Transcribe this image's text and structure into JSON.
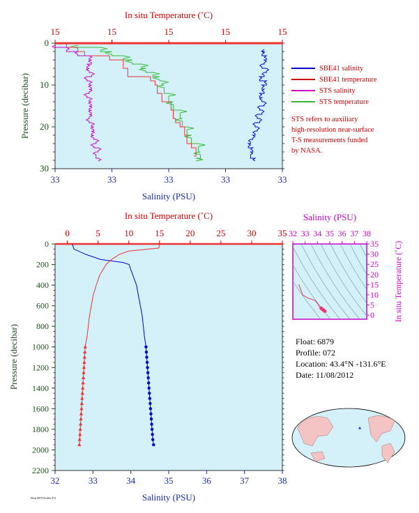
{
  "colors": {
    "bg": "#d4f1fa",
    "salinity_axis": "#1a2aa8",
    "temp_axis": "#cc0000",
    "pressure_axis": "#1f4d1f",
    "sbe_salinity": "#0000cc",
    "sbe_temperature": "#ee3333",
    "sts_salinity": "#cc00cc",
    "sts_temperature": "#33bb33",
    "ts_axis": "#cc00cc",
    "land": "#f4c4c4"
  },
  "legend": [
    {
      "label": "SBE41 salinity",
      "color": "#0000cc"
    },
    {
      "label": "SBE41 temperature",
      "color": "#cc0000"
    },
    {
      "label": "STS salinity",
      "color": "#cc00cc"
    },
    {
      "label": "STS temperature",
      "color": "#33bb33"
    }
  ],
  "note_lines": [
    "STS refers to auxiliary",
    "high-resolution near-surface",
    "T-S measurements funded",
    "by NASA."
  ],
  "info": {
    "float": "Float:  6879",
    "profile": "Profile:  072",
    "location": "Location:  43.4°N  -131.6°E",
    "date": "Date:  11/08/2012"
  },
  "footer_text": "Float 6879 Profile 072",
  "chart_data": [
    {
      "type": "line",
      "id": "near_surface",
      "top_axis_label": "In situ Temperature (˚C)",
      "top_ticks": [
        "15",
        "15",
        "15",
        "15",
        "15"
      ],
      "xlabel": "Salinity (PSU)",
      "bottom_ticks": [
        "33",
        "33",
        "33",
        "33",
        "33"
      ],
      "ylabel": "Pressure (decibar)",
      "y_ticks": [
        "0",
        "10",
        "20",
        "30"
      ],
      "ylim": [
        30,
        0
      ],
      "sbe_salinity_p": [
        1.5,
        2,
        3,
        4,
        5,
        6,
        7,
        8,
        9,
        10,
        11,
        12,
        13,
        14,
        15,
        16,
        17,
        18,
        19,
        20,
        21,
        22,
        23,
        24,
        25,
        26,
        27.5
      ],
      "sbe_salinity_x": [
        0.92,
        0.91,
        0.93,
        0.92,
        0.91,
        0.93,
        0.92,
        0.9,
        0.93,
        0.91,
        0.92,
        0.9,
        0.91,
        0.92,
        0.9,
        0.91,
        0.89,
        0.9,
        0.88,
        0.89,
        0.88,
        0.87,
        0.86,
        0.85,
        0.87,
        0.86,
        0.88
      ],
      "sbe_temperature_p": [
        0.2,
        1,
        2,
        3,
        4,
        6,
        8,
        9,
        10,
        12,
        14,
        16,
        18,
        19,
        20,
        22,
        24,
        25,
        27
      ],
      "sbe_temperature_x": [
        0.05,
        0.1,
        0.13,
        0.24,
        0.3,
        0.32,
        0.42,
        0.44,
        0.45,
        0.47,
        0.51,
        0.52,
        0.53,
        0.55,
        0.57,
        0.58,
        0.6,
        0.62,
        0.61
      ],
      "sts_salinity_p": [
        0.5,
        1,
        2,
        3,
        4,
        5,
        6,
        7,
        8,
        9,
        10,
        11,
        12,
        13,
        14,
        15,
        16,
        17,
        18,
        19,
        20,
        21,
        22,
        23,
        24,
        25,
        26,
        27.5
      ],
      "sts_salinity_x": [
        0.0,
        0.05,
        0.1,
        0.15,
        0.16,
        0.14,
        0.15,
        0.16,
        0.14,
        0.15,
        0.16,
        0.15,
        0.14,
        0.15,
        0.16,
        0.15,
        0.16,
        0.15,
        0.15,
        0.16,
        0.17,
        0.16,
        0.17,
        0.18,
        0.17,
        0.19,
        0.18,
        0.19
      ],
      "sts_temperature_p": [
        0.5,
        1,
        2,
        3,
        4,
        5,
        6,
        7,
        8,
        9,
        10,
        12,
        14,
        16,
        18,
        20,
        22,
        24,
        26,
        27.5
      ],
      "sts_temperature_x": [
        0.1,
        0.2,
        0.25,
        0.3,
        0.34,
        0.38,
        0.4,
        0.43,
        0.46,
        0.47,
        0.48,
        0.5,
        0.52,
        0.55,
        0.56,
        0.58,
        0.6,
        0.63,
        0.64,
        0.62
      ]
    },
    {
      "type": "line",
      "id": "full_profile",
      "top_axis_label": "In situ Temperature (˚C)",
      "top_ticks": [
        "0",
        "5",
        "10",
        "15",
        "20",
        "25",
        "30",
        "35"
      ],
      "xlabel": "Salinity (PSU)",
      "bottom_ticks": [
        "32",
        "33",
        "34",
        "35",
        "36",
        "37",
        "38"
      ],
      "ylabel": "Pressure (decibar)",
      "y_ticks": [
        "0",
        "200",
        "400",
        "600",
        "800",
        "1000",
        "1200",
        "1400",
        "1600",
        "1800",
        "2000",
        "2200"
      ],
      "salinity_xlim": [
        32,
        38
      ],
      "temperature_xlim": [
        -2,
        35
      ],
      "ylim": [
        2200,
        0
      ],
      "salinity_pressure": [
        0,
        50,
        100,
        150,
        180,
        200,
        250,
        300,
        350,
        400,
        500,
        600,
        700,
        800,
        900,
        1000
      ],
      "salinity_values": [
        32.45,
        32.5,
        32.8,
        33.2,
        33.8,
        33.95,
        34.0,
        34.05,
        34.1,
        34.15,
        34.2,
        34.25,
        34.3,
        34.33,
        34.36,
        34.4
      ],
      "temperature_pressure": [
        0,
        40,
        70,
        100,
        150,
        200,
        250,
        300,
        400,
        500,
        600,
        700,
        800,
        900,
        1000
      ],
      "temperature_values": [
        15.0,
        14.9,
        10.0,
        8.5,
        7.2,
        6.3,
        5.8,
        5.3,
        4.7,
        4.2,
        3.9,
        3.6,
        3.4,
        3.2,
        2.9
      ],
      "deep_pressure": [
        1000,
        1050,
        1100,
        1150,
        1200,
        1250,
        1300,
        1350,
        1400,
        1450,
        1500,
        1550,
        1600,
        1650,
        1700,
        1750,
        1800,
        1850,
        1900,
        1950
      ],
      "deep_salinity": [
        34.4,
        34.41,
        34.42,
        34.43,
        34.44,
        34.45,
        34.46,
        34.47,
        34.48,
        34.49,
        34.5,
        34.51,
        34.52,
        34.53,
        34.54,
        34.55,
        34.56,
        34.57,
        34.58,
        34.6
      ],
      "deep_temperature": [
        2.9,
        2.85,
        2.8,
        2.75,
        2.7,
        2.65,
        2.6,
        2.55,
        2.5,
        2.45,
        2.4,
        2.35,
        2.3,
        2.25,
        2.2,
        2.15,
        2.1,
        2.05,
        2.0,
        1.95
      ]
    },
    {
      "type": "scatter",
      "id": "ts_diagram",
      "xlabel": "Salinity (PSU)",
      "x_ticks": [
        "32",
        "33",
        "34",
        "35",
        "36",
        "37",
        "38"
      ],
      "ylabel": "In situ Temperature (˚C)",
      "y_ticks": [
        "0",
        "5",
        "10",
        "15",
        "20",
        "25",
        "30",
        "35"
      ],
      "xlim": [
        32,
        38
      ],
      "ylim": [
        -2,
        35
      ],
      "ts_salinity": [
        32.45,
        32.5,
        32.8,
        33.2,
        33.8,
        34.0,
        34.1,
        34.2,
        34.3,
        34.4,
        34.5,
        34.6
      ],
      "ts_temperature": [
        15.0,
        14.9,
        10.0,
        8.5,
        7.2,
        5.8,
        4.7,
        3.9,
        3.4,
        2.9,
        2.4,
        1.95
      ]
    }
  ]
}
